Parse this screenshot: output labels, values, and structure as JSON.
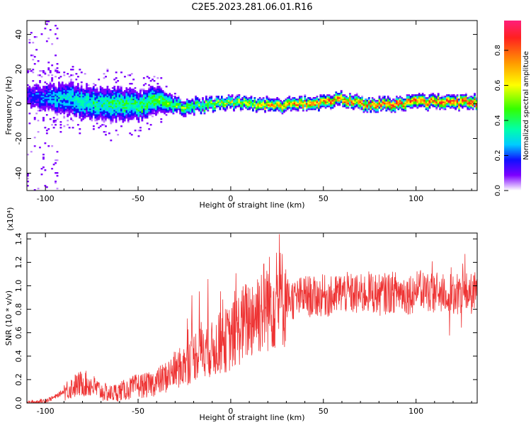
{
  "title": "C2E5.2023.281.06.01.R16",
  "chart_data": [
    {
      "type": "heatmap",
      "xlabel": "Height of straight line (km)",
      "ylabel": "Frequency (Hz)",
      "xlim": [
        -110,
        133
      ],
      "ylim": [
        -50,
        48
      ],
      "x_ticks": [
        -100,
        -50,
        0,
        50,
        100
      ],
      "y_ticks": [
        -40,
        -20,
        0,
        20,
        40
      ],
      "colorbar": {
        "label": "Normalized spectral amplitude",
        "range": [
          0,
          0.97
        ],
        "ticks": [
          0.0,
          0.2,
          0.4,
          0.6,
          0.8
        ],
        "colormap": [
          "#ff1f7a",
          "#ff2020",
          "#ff9a00",
          "#ffff00",
          "#33ff00",
          "#00ffaa",
          "#00ccff",
          "#1010ff",
          "#7d00ff",
          "#ffffff"
        ]
      },
      "band_center_hz": [
        {
          "x": -110,
          "y": 4
        },
        {
          "x": -90,
          "y": 3
        },
        {
          "x": -70,
          "y": 0
        },
        {
          "x": -50,
          "y": -1
        },
        {
          "x": -40,
          "y": 2
        },
        {
          "x": -25,
          "y": -2
        },
        {
          "x": 0,
          "y": 1
        },
        {
          "x": 25,
          "y": -1
        },
        {
          "x": 50,
          "y": 1
        },
        {
          "x": 60,
          "y": 3
        },
        {
          "x": 75,
          "y": -1
        },
        {
          "x": 100,
          "y": 1
        },
        {
          "x": 133,
          "y": 1
        }
      ],
      "band_halfwidth_hz": [
        {
          "x": -110,
          "y": 7
        },
        {
          "x": -90,
          "y": 9
        },
        {
          "x": -60,
          "y": 9
        },
        {
          "x": -40,
          "y": 7
        },
        {
          "x": -30,
          "y": 4
        },
        {
          "x": 0,
          "y": 3
        },
        {
          "x": 133,
          "y": 3
        }
      ],
      "peak_amplitude": [
        {
          "x": -110,
          "y": 0.2
        },
        {
          "x": -90,
          "y": 0.35
        },
        {
          "x": -50,
          "y": 0.45
        },
        {
          "x": -40,
          "y": 0.5
        },
        {
          "x": -20,
          "y": 0.5
        },
        {
          "x": 0,
          "y": 0.6
        },
        {
          "x": 20,
          "y": 0.7
        },
        {
          "x": 50,
          "y": 0.8
        },
        {
          "x": 90,
          "y": 0.85
        },
        {
          "x": 133,
          "y": 0.9
        }
      ]
    },
    {
      "type": "line",
      "xlabel": "Height of straight line (km)",
      "ylabel": "SNR (10 * v/v)",
      "y_multiplier": "(x10⁴)",
      "xlim": [
        -110,
        133
      ],
      "ylim": [
        0,
        1.45
      ],
      "x_ticks": [
        -100,
        -50,
        0,
        50,
        100
      ],
      "y_ticks": [
        0.0,
        0.2,
        0.4,
        0.6,
        0.8,
        1.0,
        1.2,
        1.4
      ],
      "color": "#ee3333",
      "series": [
        {
          "x": [
            -110,
            -105,
            -100,
            -95,
            -90,
            -85,
            -80,
            -75,
            -70,
            -65,
            -60,
            -55,
            -50,
            -45,
            -40,
            -35,
            -30,
            -25,
            -20,
            -15,
            -10,
            -5,
            0,
            5,
            10,
            15,
            20,
            25,
            30,
            35,
            40,
            45,
            50,
            55,
            60,
            65,
            70,
            75,
            80,
            85,
            90,
            95,
            100,
            105,
            110,
            115,
            120,
            125,
            130,
            133
          ],
          "y": [
            0.0,
            0.01,
            0.02,
            0.05,
            0.1,
            0.14,
            0.17,
            0.15,
            0.1,
            0.08,
            0.1,
            0.12,
            0.15,
            0.15,
            0.18,
            0.22,
            0.28,
            0.32,
            0.4,
            0.48,
            0.45,
            0.52,
            0.55,
            0.65,
            0.72,
            0.8,
            0.85,
            0.88,
            0.9,
            0.88,
            0.92,
            0.9,
            0.92,
            0.9,
            0.95,
            0.93,
            0.92,
            0.95,
            0.92,
            0.94,
            0.95,
            0.93,
            0.95,
            0.96,
            0.94,
            0.95,
            0.92,
            0.95,
            0.93,
            0.95
          ]
        }
      ]
    }
  ]
}
